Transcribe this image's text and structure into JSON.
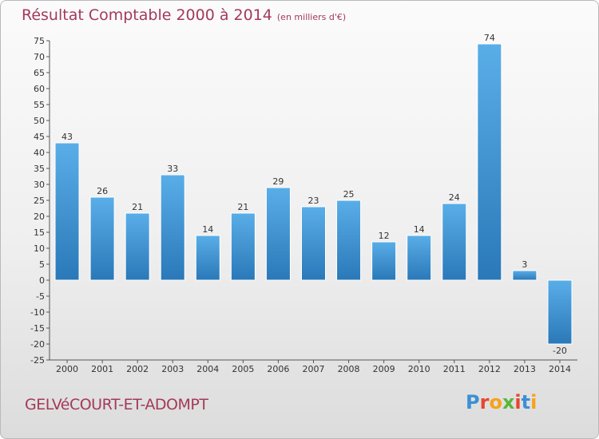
{
  "header": {
    "title": "Résultat Comptable 2000 à 2014",
    "subtitle": "(en milliers d'€)"
  },
  "footer": {
    "commune": "GELVéCOURT-ET-ADOMPT",
    "logo_text": "Proxiti",
    "logo_colors": [
      "#3d8fd6",
      "#e8452e",
      "#f6a21b",
      "#5bb53b",
      "#e8452e",
      "#3d8fd6",
      "#f6a21b"
    ]
  },
  "colors": {
    "bar_light": "#5aaee8",
    "bar_dark": "#2a78b8",
    "text": "#a33a5a"
  },
  "chart_data": {
    "type": "bar",
    "categories": [
      "2000",
      "2001",
      "2002",
      "2003",
      "2004",
      "2005",
      "2006",
      "2007",
      "2008",
      "2009",
      "2010",
      "2011",
      "2012",
      "2013",
      "2014"
    ],
    "values": [
      43,
      26,
      21,
      33,
      14,
      21,
      29,
      23,
      25,
      12,
      14,
      24,
      74,
      3,
      -20
    ],
    "ylim": [
      -25,
      75
    ],
    "yticks": [
      -25,
      -20,
      -15,
      -10,
      -5,
      0,
      5,
      10,
      15,
      20,
      25,
      30,
      35,
      40,
      45,
      50,
      55,
      60,
      65,
      70,
      75
    ],
    "grid": false
  }
}
